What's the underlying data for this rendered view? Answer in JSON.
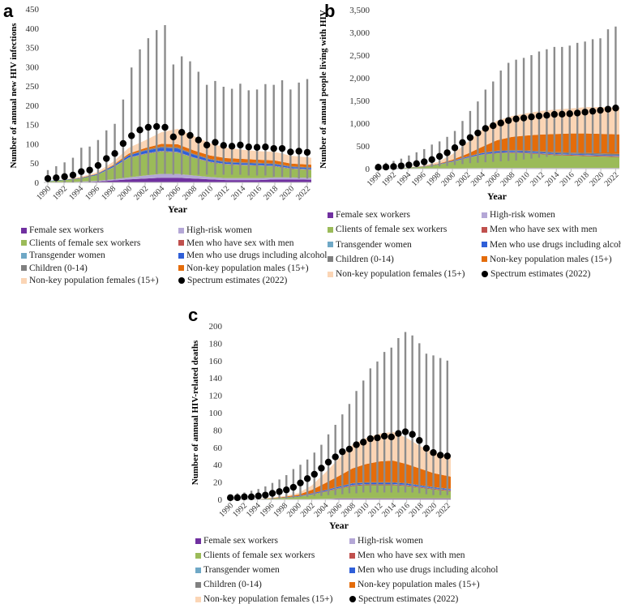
{
  "panels_letters": [
    "a",
    "b",
    "c"
  ],
  "x_title": "Year",
  "legend": [
    {
      "label": "Female sex workers",
      "color": "#7030a0"
    },
    {
      "label": "High-risk women",
      "color": "#b4a7d6"
    },
    {
      "label": "Clients of female sex workers",
      "color": "#9bbb59"
    },
    {
      "label": "Men who have sex with men",
      "color": "#c0504d"
    },
    {
      "label": "Transgender women",
      "color": "#6fa8c6"
    },
    {
      "label": "Men who use drugs including alcohol",
      "color": "#2f5fd8"
    },
    {
      "label": "Children (0-14)",
      "color": "#808080"
    },
    {
      "label": "Non-key population males (15+)",
      "color": "#e46c0a"
    },
    {
      "label": "Non-key population females (15+)",
      "color": "#fbd5b5"
    },
    {
      "label": "Spectrum estimates (2022)",
      "color": "#000000"
    }
  ],
  "chart_data": [
    {
      "type": "area",
      "panel": "a",
      "ylabel": "Number of annual new HIV infections",
      "xlabel": "Year",
      "ylim": [
        0,
        450
      ],
      "yticks": [
        "0",
        "50",
        "100",
        "150",
        "200",
        "250",
        "300",
        "350",
        "400",
        "450"
      ],
      "ytick_values": [
        0,
        50,
        100,
        150,
        200,
        250,
        300,
        350,
        400,
        450
      ],
      "xticks": [
        "1990",
        "1992",
        "1994",
        "1996",
        "1998",
        "2000",
        "2002",
        "2004",
        "2006",
        "2008",
        "2010",
        "2012",
        "2014",
        "2016",
        "2018",
        "2020",
        "2022"
      ],
      "area_years": [
        1990,
        1992,
        1994,
        1996,
        1998,
        2000,
        2002,
        2004,
        2006,
        2008,
        2010,
        2012,
        2014,
        2016,
        2018,
        2020,
        2022
      ],
      "series": [
        {
          "name": "Female sex workers",
          "values": [
            0,
            0,
            1,
            2,
            5,
            8,
            10,
            12,
            12,
            10,
            8,
            6,
            6,
            6,
            8,
            8,
            7
          ]
        },
        {
          "name": "High-risk women",
          "values": [
            0,
            0,
            1,
            2,
            3,
            5,
            8,
            10,
            10,
            8,
            6,
            5,
            5,
            5,
            5,
            5,
            5
          ]
        },
        {
          "name": "Clients of female sex workers",
          "values": [
            3,
            6,
            8,
            15,
            30,
            50,
            55,
            58,
            55,
            45,
            38,
            35,
            33,
            32,
            28,
            22,
            20
          ]
        },
        {
          "name": "Men who have sex with men",
          "values": [
            0,
            0,
            0,
            0,
            0.5,
            1,
            1,
            1,
            1,
            1,
            1,
            1,
            1,
            1,
            1,
            1,
            1
          ]
        },
        {
          "name": "Transgender women",
          "values": [
            0,
            0,
            0,
            0,
            0.5,
            1,
            1,
            1,
            1,
            1,
            1,
            1,
            1,
            1,
            1,
            1,
            1
          ]
        },
        {
          "name": "Men who use drugs including alcohol",
          "values": [
            1,
            1,
            1,
            2,
            3,
            5,
            7,
            8,
            9,
            7,
            5,
            4,
            4,
            4,
            4,
            3,
            3
          ]
        },
        {
          "name": "Children (0-14)",
          "values": [
            0,
            0,
            0,
            0,
            0.5,
            1,
            2,
            3,
            3,
            2,
            2,
            2,
            2,
            2,
            2,
            2,
            2
          ]
        },
        {
          "name": "Non-key population males (15+)",
          "values": [
            0,
            0,
            1,
            1,
            2,
            4,
            5,
            7,
            8,
            9,
            9,
            9,
            9,
            8,
            8,
            7,
            7
          ]
        },
        {
          "name": "Non-key population females (15+)",
          "values": [
            0,
            1,
            2,
            4,
            8,
            15,
            20,
            30,
            40,
            37,
            32,
            27,
            24,
            22,
            22,
            20,
            18
          ]
        }
      ],
      "spectrum": {
        "name": "Spectrum estimates (2022)",
        "years_start": 1990,
        "values": [
          10,
          12,
          15,
          19,
          28,
          32,
          44,
          62,
          75,
          101,
          121,
          136,
          143,
          145,
          143,
          118,
          130,
          122,
          110,
          97,
          104,
          96,
          94,
          97,
          92,
          91,
          92,
          88,
          88,
          79,
          81,
          78
        ],
        "upper": [
          32,
          42,
          52,
          64,
          90,
          93,
          110,
          135,
          152,
          215,
          298,
          345,
          374,
          395,
          408,
          306,
          327,
          314,
          287,
          253,
          263,
          248,
          243,
          256,
          239,
          241,
          255,
          253,
          265,
          241,
          259,
          268
        ],
        "lower": [
          0,
          0,
          0,
          0,
          0,
          0,
          2,
          5,
          8,
          12,
          16,
          18,
          20,
          22,
          22,
          20,
          20,
          20,
          20,
          20,
          20,
          20,
          20,
          20,
          18,
          18,
          18,
          15,
          14,
          12,
          10,
          10
        ]
      }
    },
    {
      "type": "area",
      "panel": "b",
      "ylabel": "Number of annual people living with HIV",
      "xlabel": "Year",
      "ylim": [
        0,
        3500
      ],
      "yticks": [
        "0",
        "500",
        "1,000",
        "1,500",
        "2,000",
        "2,500",
        "3,000",
        "3,500"
      ],
      "ytick_values": [
        0,
        500,
        1000,
        1500,
        2000,
        2500,
        3000,
        3500
      ],
      "xticks": [
        "1990",
        "1992",
        "1994",
        "1996",
        "1998",
        "2000",
        "2002",
        "2004",
        "2006",
        "2008",
        "2010",
        "2012",
        "2014",
        "2016",
        "2018",
        "2020",
        "2022"
      ],
      "area_years": [
        1990,
        1992,
        1994,
        1996,
        1998,
        2000,
        2002,
        2004,
        2006,
        2008,
        2010,
        2012,
        2014,
        2016,
        2018,
        2020,
        2022
      ],
      "series": [
        {
          "name": "Female sex workers",
          "values": [
            0,
            0,
            1,
            2,
            3,
            5,
            8,
            10,
            12,
            12,
            12,
            12,
            12,
            12,
            12,
            12,
            12
          ]
        },
        {
          "name": "High-risk women",
          "values": [
            0,
            0,
            0,
            1,
            1,
            2,
            3,
            3,
            3,
            3,
            3,
            3,
            3,
            3,
            3,
            3,
            3
          ]
        },
        {
          "name": "Clients of female sex workers",
          "values": [
            5,
            10,
            20,
            40,
            80,
            140,
            220,
            290,
            320,
            330,
            320,
            300,
            280,
            270,
            260,
            250,
            240
          ]
        },
        {
          "name": "Men who have sex with men",
          "values": [
            0,
            0,
            0,
            1,
            2,
            4,
            6,
            8,
            10,
            12,
            14,
            16,
            17,
            18,
            18,
            18,
            18
          ]
        },
        {
          "name": "Transgender women",
          "values": [
            0,
            0,
            0,
            0,
            1,
            2,
            3,
            4,
            5,
            6,
            7,
            8,
            8,
            8,
            8,
            8,
            8
          ]
        },
        {
          "name": "Men who use drugs including alcohol",
          "values": [
            1,
            2,
            3,
            5,
            8,
            15,
            20,
            25,
            30,
            28,
            25,
            22,
            20,
            18,
            16,
            15,
            14
          ]
        },
        {
          "name": "Children (0-14)",
          "values": [
            0,
            0,
            0,
            1,
            2,
            4,
            6,
            10,
            15,
            18,
            20,
            22,
            24,
            26,
            28,
            30,
            30
          ]
        },
        {
          "name": "Non-key population males (15+)",
          "values": [
            0,
            0,
            1,
            3,
            8,
            25,
            60,
            130,
            230,
            290,
            330,
            370,
            400,
            420,
            430,
            430,
            430
          ]
        },
        {
          "name": "Non-key population females (15+)",
          "values": [
            0,
            2,
            5,
            15,
            40,
            120,
            250,
            380,
            430,
            460,
            490,
            520,
            540,
            550,
            580,
            590,
            590
          ]
        }
      ],
      "spectrum": {
        "name": "Spectrum estimates (2022)",
        "years_start": 1990,
        "values": [
          30,
          35,
          45,
          60,
          80,
          110,
          150,
          200,
          270,
          350,
          460,
          575,
          685,
          785,
          885,
          945,
          1005,
          1060,
          1095,
          1115,
          1140,
          1160,
          1175,
          1195,
          1200,
          1210,
          1225,
          1245,
          1265,
          1285,
          1310,
          1335
        ],
        "upper": [
          110,
          130,
          170,
          220,
          290,
          360,
          430,
          530,
          600,
          700,
          830,
          1050,
          1270,
          1480,
          1740,
          1920,
          2160,
          2330,
          2400,
          2440,
          2500,
          2580,
          2630,
          2680,
          2680,
          2710,
          2770,
          2800,
          2850,
          2870,
          3070,
          3130
        ],
        "lower": [
          0,
          0,
          0,
          0,
          10,
          20,
          30,
          40,
          50,
          60,
          80,
          100,
          120,
          130,
          140,
          150,
          160,
          170,
          180,
          200,
          220,
          240,
          260,
          280,
          290,
          300,
          320,
          330,
          340,
          350,
          360,
          370
        ]
      }
    },
    {
      "type": "area",
      "panel": "c",
      "ylabel": "Number of annual HIV-related deaths",
      "xlabel": "Year",
      "ylim": [
        0,
        200
      ],
      "yticks": [
        "0",
        "20",
        "40",
        "60",
        "80",
        "100",
        "120",
        "140",
        "160",
        "180",
        "200"
      ],
      "ytick_values": [
        0,
        20,
        40,
        60,
        80,
        100,
        120,
        140,
        160,
        180,
        200
      ],
      "xticks": [
        "1990",
        "1992",
        "1994",
        "1996",
        "1998",
        "2000",
        "2002",
        "2004",
        "2006",
        "2008",
        "2010",
        "2012",
        "2014",
        "2016",
        "2018",
        "2020",
        "2022"
      ],
      "area_years": [
        1990,
        1992,
        1994,
        1996,
        1998,
        2000,
        2002,
        2004,
        2006,
        2008,
        2010,
        2012,
        2014,
        2016,
        2018,
        2020,
        2022
      ],
      "series": [
        {
          "name": "Female sex workers",
          "values": [
            0,
            0,
            0,
            0,
            0,
            0,
            0.5,
            0.5,
            1,
            1,
            1,
            1,
            1,
            1,
            1,
            1,
            1
          ]
        },
        {
          "name": "High-risk women",
          "values": [
            0,
            0,
            0,
            0,
            0,
            0,
            0,
            0.2,
            0.3,
            0.3,
            0.3,
            0.3,
            0.3,
            0.3,
            0.3,
            0.3,
            0.3
          ]
        },
        {
          "name": "Clients of female sex workers",
          "values": [
            0,
            0,
            0.5,
            1,
            2,
            3,
            5,
            8,
            11,
            14,
            15,
            15,
            15,
            14,
            12,
            10,
            8
          ]
        },
        {
          "name": "Men who have sex with men",
          "values": [
            0,
            0,
            0,
            0,
            0,
            0.2,
            0.3,
            0.5,
            0.7,
            1,
            1,
            1,
            1,
            1,
            1,
            1,
            1
          ]
        },
        {
          "name": "Transgender women",
          "values": [
            0,
            0,
            0,
            0,
            0,
            0.1,
            0.2,
            0.3,
            0.4,
            0.5,
            0.5,
            0.5,
            0.5,
            0.5,
            0.5,
            0.5,
            0.5
          ]
        },
        {
          "name": "Men who use drugs including alcohol",
          "values": [
            0,
            0,
            0,
            0.2,
            0.3,
            0.5,
            0.8,
            1,
            1.2,
            1.5,
            1.5,
            1.5,
            1.5,
            1.5,
            1.2,
            1,
            1
          ]
        },
        {
          "name": "Children (0-14)",
          "values": [
            0,
            0,
            0,
            0,
            0,
            0.1,
            0.2,
            0.3,
            0.4,
            0.5,
            0.5,
            0.5,
            0.5,
            0.5,
            0.5,
            0.5,
            0.5
          ]
        },
        {
          "name": "Non-key population males (15+)",
          "values": [
            0,
            0,
            0,
            0.3,
            0.7,
            1.5,
            4,
            8,
            12,
            17,
            21,
            24,
            25,
            22,
            19,
            16,
            14
          ]
        },
        {
          "name": "Non-key population females (15+)",
          "values": [
            0,
            0,
            0,
            0.5,
            1,
            2,
            5,
            12,
            20,
            27,
            30,
            32,
            33,
            30,
            26,
            24,
            22
          ]
        }
      ],
      "spectrum": {
        "name": "Spectrum estimates (2022)",
        "years_start": 1990,
        "values": [
          2,
          2,
          3,
          3,
          4,
          5,
          7,
          9,
          11,
          14,
          19,
          24,
          29,
          36,
          43,
          49,
          55,
          58,
          63,
          66,
          70,
          71,
          73,
          72,
          76,
          78,
          75,
          68,
          59,
          54,
          51,
          50
        ],
        "upper": [
          5,
          7,
          8,
          10,
          12,
          15,
          19,
          23,
          28,
          35,
          40,
          46,
          54,
          63,
          75,
          86,
          98,
          110,
          125,
          137,
          151,
          159,
          170,
          175,
          186,
          193,
          189,
          180,
          168,
          166,
          163,
          160
        ],
        "lower": [
          0,
          0,
          0,
          0,
          0,
          0,
          0,
          1,
          1,
          2,
          3,
          3,
          4,
          4,
          5,
          5,
          6,
          7,
          7,
          8,
          8,
          8,
          8,
          8,
          8,
          8,
          8,
          7,
          6,
          5,
          5,
          5
        ]
      }
    }
  ]
}
